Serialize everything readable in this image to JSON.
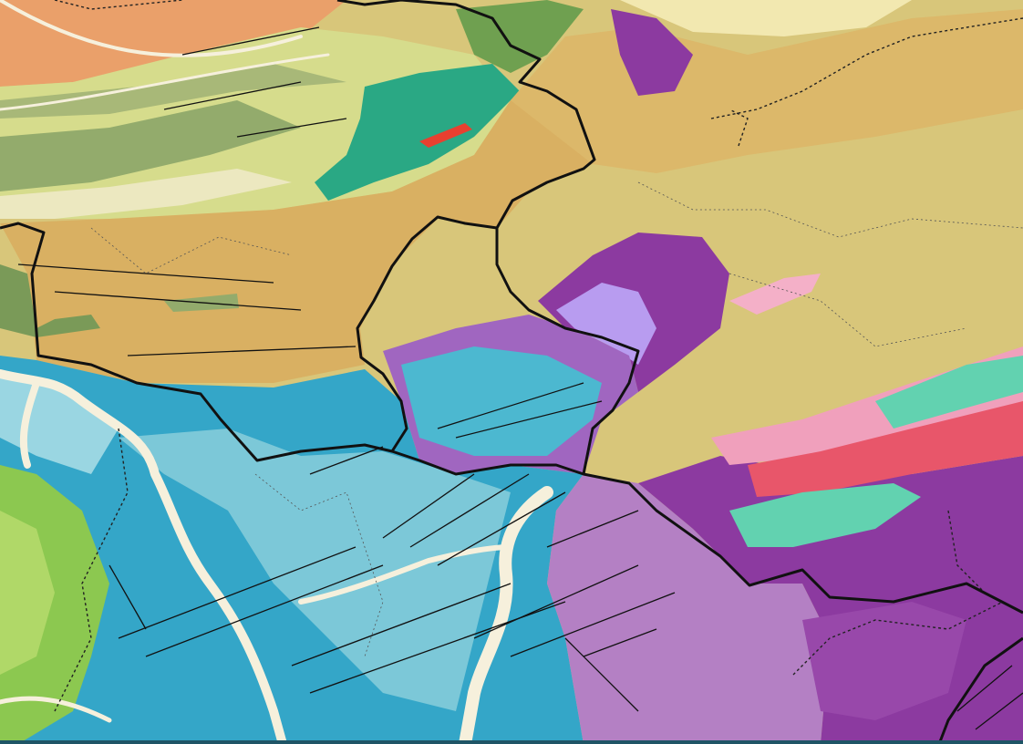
{
  "map": {
    "title": "",
    "type": "geological map",
    "colors": {
      "tan": "#d9b062",
      "khaki": "#d8c67a",
      "orange": "#eaa06a",
      "yellow_green": "#d6dc8c",
      "olive": "#93ab6c",
      "teal_green": "#2aa884",
      "purple": "#a066c0",
      "dark_purple": "#8c3aa0",
      "light_purple": "#b480c4",
      "lavender": "#b89cf0",
      "blue": "#34a6c8",
      "light_blue": "#7cc8d8",
      "green": "#8cc850",
      "red": "#e8566a",
      "pink": "#f0a0bc",
      "aqua": "#62d2b0",
      "river": "#f6f0dc",
      "boundary": "#111111"
    },
    "icons": []
  }
}
